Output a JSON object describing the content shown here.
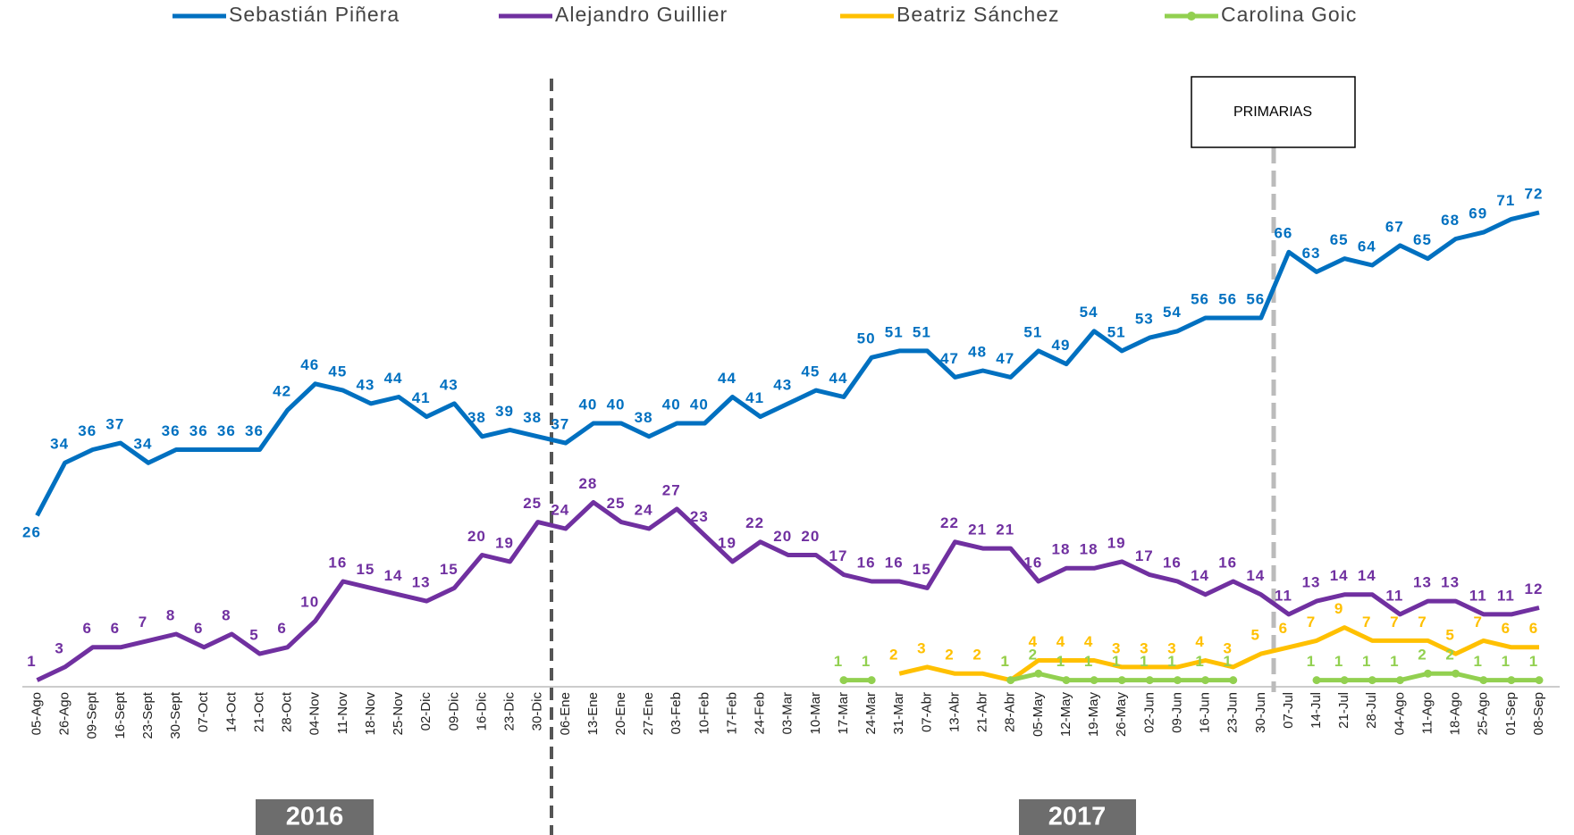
{
  "chart_data": {
    "type": "line",
    "categories": [
      "05-Ago",
      "26-Ago",
      "09-Sept",
      "16-Sept",
      "23-Sept",
      "30-Sept",
      "07-Oct",
      "14-Oct",
      "21-Oct",
      "28-Oct",
      "04-Nov",
      "11-Nov",
      "18-Nov",
      "25-Nov",
      "02-Dic",
      "09-Dic",
      "16-Dic",
      "23-Dic",
      "30-Dic",
      "06-Ene",
      "13-Ene",
      "20-Ene",
      "27-Ene",
      "03-Feb",
      "10-Feb",
      "17-Feb",
      "24-Feb",
      "03-Mar",
      "10-Mar",
      "17-Mar",
      "24-Mar",
      "31-Mar",
      "07-Abr",
      "13-Abr",
      "21-Abr",
      "28-Abr",
      "05-May",
      "12-May",
      "19-May",
      "26-May",
      "02-Jun",
      "09-Jun",
      "16-Jun",
      "23-Jun",
      "30-Jun",
      "07-Jul",
      "14-Jul",
      "21-Jul",
      "28-Jul",
      "04-Ago",
      "11-Ago",
      "18-Ago",
      "25-Ago",
      "01-Sep",
      "08-Sep"
    ],
    "series": [
      {
        "name": "Sebastián Piñera",
        "color": "#0070c0",
        "values": [
          26,
          34,
          36,
          37,
          34,
          36,
          36,
          36,
          36,
          42,
          46,
          45,
          43,
          44,
          41,
          43,
          38,
          39,
          38,
          37,
          40,
          40,
          38,
          40,
          40,
          44,
          41,
          43,
          45,
          44,
          50,
          51,
          51,
          47,
          48,
          47,
          51,
          49,
          54,
          51,
          53,
          54,
          56,
          56,
          56,
          66,
          63,
          65,
          64,
          67,
          65,
          68,
          69,
          71,
          72
        ]
      },
      {
        "name": "Alejandro Guillier",
        "color": "#7030a0",
        "values": [
          1,
          3,
          6,
          6,
          7,
          8,
          6,
          8,
          5,
          6,
          10,
          16,
          15,
          14,
          13,
          15,
          20,
          19,
          25,
          24,
          28,
          25,
          24,
          27,
          23,
          19,
          22,
          20,
          20,
          17,
          16,
          16,
          15,
          22,
          21,
          21,
          16,
          18,
          18,
          19,
          17,
          16,
          14,
          16,
          14,
          11,
          13,
          14,
          14,
          11,
          13,
          13,
          11,
          11,
          12
        ]
      },
      {
        "name": "Beatriz Sánchez",
        "color": "#ffc000",
        "values": [
          null,
          null,
          null,
          null,
          null,
          null,
          null,
          null,
          null,
          null,
          null,
          null,
          null,
          null,
          null,
          null,
          null,
          null,
          null,
          null,
          null,
          null,
          null,
          null,
          null,
          null,
          null,
          null,
          null,
          null,
          null,
          2,
          3,
          2,
          2,
          1,
          4,
          4,
          4,
          3,
          3,
          3,
          4,
          3,
          5,
          6,
          7,
          9,
          7,
          7,
          7,
          5,
          7,
          6,
          6
        ]
      },
      {
        "name": "Carolina Goic",
        "color": "#92d050",
        "marker": true,
        "values": [
          null,
          null,
          null,
          null,
          null,
          null,
          null,
          null,
          null,
          null,
          null,
          null,
          null,
          null,
          null,
          null,
          null,
          null,
          null,
          null,
          null,
          null,
          null,
          null,
          null,
          null,
          null,
          null,
          null,
          1,
          1,
          null,
          null,
          null,
          null,
          1,
          2,
          1,
          1,
          1,
          1,
          1,
          1,
          1,
          null,
          null,
          1,
          1,
          1,
          1,
          2,
          2,
          1,
          1,
          1
        ]
      }
    ],
    "ylim": [
      0,
      80
    ],
    "years": [
      "2016",
      "2017"
    ],
    "annotation": "PRIMARIAS"
  }
}
